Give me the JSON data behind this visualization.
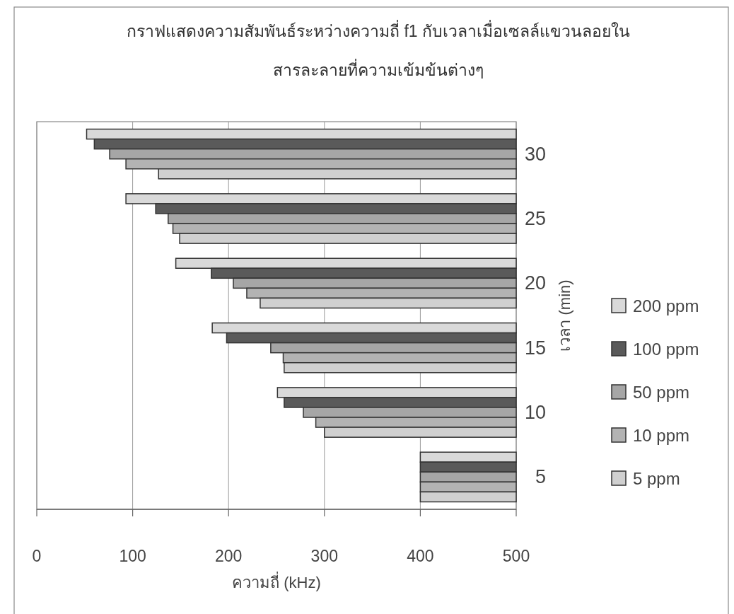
{
  "chart_data": {
    "type": "bar",
    "orientation": "horizontal",
    "title": "กราฟแสดงความสัมพันธ์ระหว่างความถี่ f1 กับเวลาเมื่อเซลล์แขวนลอยใน\nสารละลายที่ความเข้มข้นต่างๆ",
    "xlabel": "ความถี่ (kHz)",
    "ylabel": "เวลา (min)",
    "categories": [
      "30",
      "25",
      "20",
      "15",
      "10",
      "5"
    ],
    "series": [
      {
        "name": "200 ppm",
        "color": "#d9d9d9",
        "base": [
          500,
          500,
          500,
          500,
          500,
          500
        ],
        "values": [
          -448,
          -407,
          -355,
          -317,
          -249,
          -100
        ]
      },
      {
        "name": "100 ppm",
        "color": "#5a5a5a",
        "base": [
          500,
          500,
          500,
          500,
          500,
          500
        ],
        "values": [
          -440,
          -376,
          -318,
          -302,
          -242,
          -100
        ]
      },
      {
        "name": "50 ppm",
        "color": "#a6a6a6",
        "base": [
          500,
          500,
          500,
          500,
          500,
          500
        ],
        "values": [
          -424,
          -363,
          -295,
          -256,
          -222,
          -100
        ]
      },
      {
        "name": "10 ppm",
        "color": "#b3b3b3",
        "base": [
          500,
          500,
          500,
          500,
          500,
          500
        ],
        "values": [
          -407,
          -358,
          -281,
          -243,
          -209,
          -100
        ]
      },
      {
        "name": "5 ppm",
        "color": "#d0d0d0",
        "base": [
          500,
          500,
          500,
          500,
          500,
          500
        ],
        "values": [
          -373,
          -351,
          -267,
          -242,
          -200,
          -100
        ]
      }
    ],
    "xlim": [
      0,
      500
    ],
    "xticks": [
      0,
      100,
      200,
      300,
      400,
      500
    ],
    "grid": "x",
    "legend": "right"
  }
}
